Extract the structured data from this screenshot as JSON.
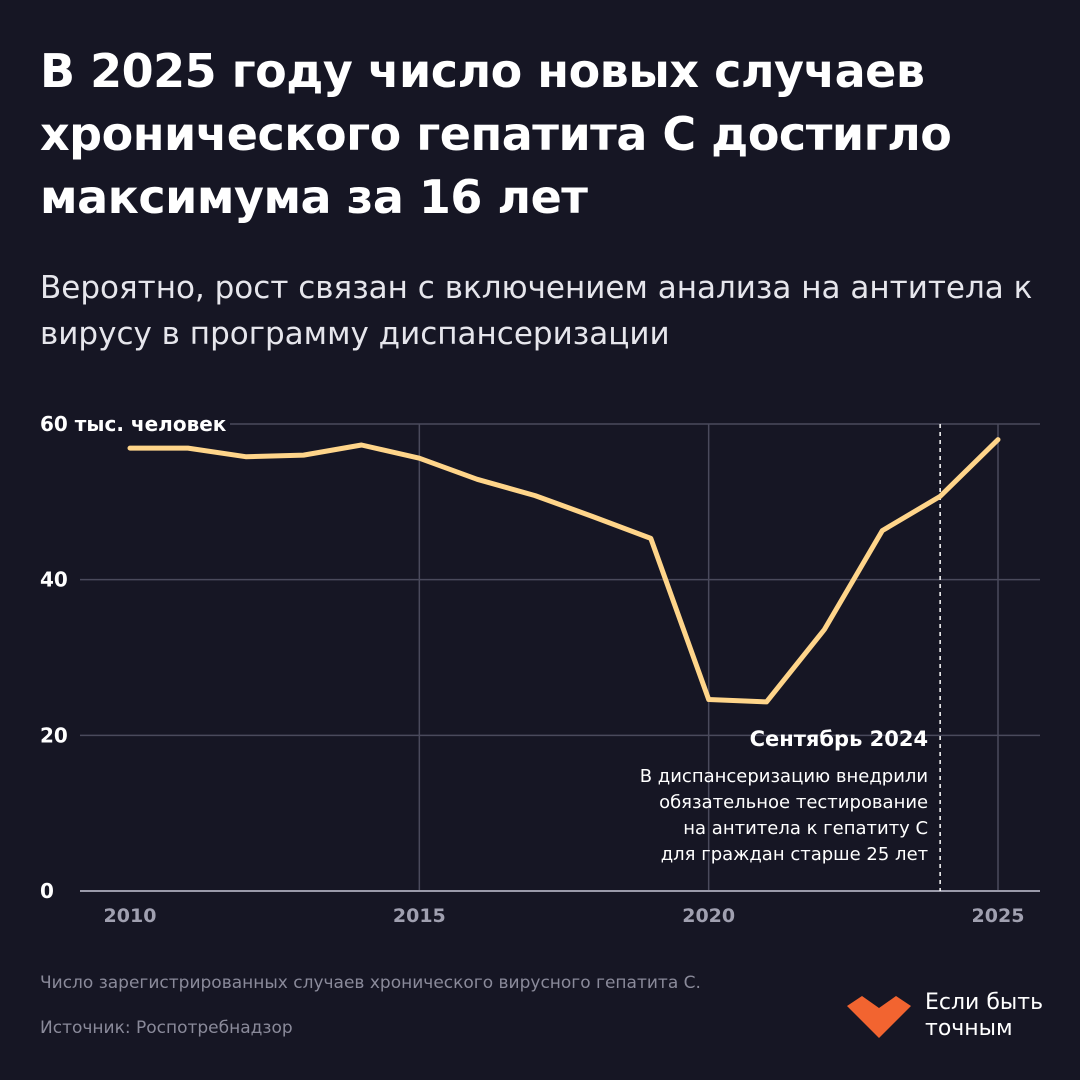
{
  "title": "В 2025 году число новых случаев хронического гепатита С достигло максимума за 16 лет",
  "subtitle": "Вероятно, рост связан с включением анализа на антитела к вирусу в программу диспансеризации",
  "chart_data": {
    "type": "line",
    "title": "В 2025 году число новых случаев хронического гепатита С достигло максимума за 16 лет",
    "subtitle": "Вероятно, рост связан с включением анализа на антитела к вирусу в программу диспансеризации",
    "y_unit_label": "тыс. человек",
    "xlabel": "",
    "ylabel": "",
    "x": [
      2010,
      2011,
      2012,
      2013,
      2014,
      2015,
      2016,
      2017,
      2018,
      2019,
      2020,
      2021,
      2022,
      2023,
      2024,
      2025
    ],
    "series": [
      {
        "name": "",
        "color": "#ffd58a",
        "values": [
          56.9,
          56.9,
          55.8,
          56.0,
          57.3,
          55.6,
          52.9,
          50.8,
          48.1,
          45.3,
          24.6,
          24.3,
          33.6,
          46.3,
          50.7,
          58.0
        ]
      }
    ],
    "xlim": [
      2010,
      2025
    ],
    "ylim": [
      0,
      60
    ],
    "x_ticks": [
      2010,
      2015,
      2020,
      2025
    ],
    "y_ticks": [
      0,
      20,
      40,
      60
    ],
    "y_tick_labels": [
      "0",
      "20",
      "40",
      "60"
    ],
    "grid": true,
    "grid_color": "#4a4a5c",
    "annotation": {
      "x": 2024.0,
      "title": "Сентябрь 2024",
      "lines": [
        "В диспансеризацию внедрили",
        "обязательное тестирование",
        "на антитела к гепатиту С",
        "для граждан старше 25 лет"
      ]
    }
  },
  "footnote": "Число зарегистрированных случаев хронического вирусного гепатита С.",
  "source": "Источник: Роспотребнадзор",
  "brand": {
    "name_line1": "Если быть",
    "name_line2": "точным",
    "logo_icon": "heart-logo-icon",
    "color": "#f26430"
  }
}
